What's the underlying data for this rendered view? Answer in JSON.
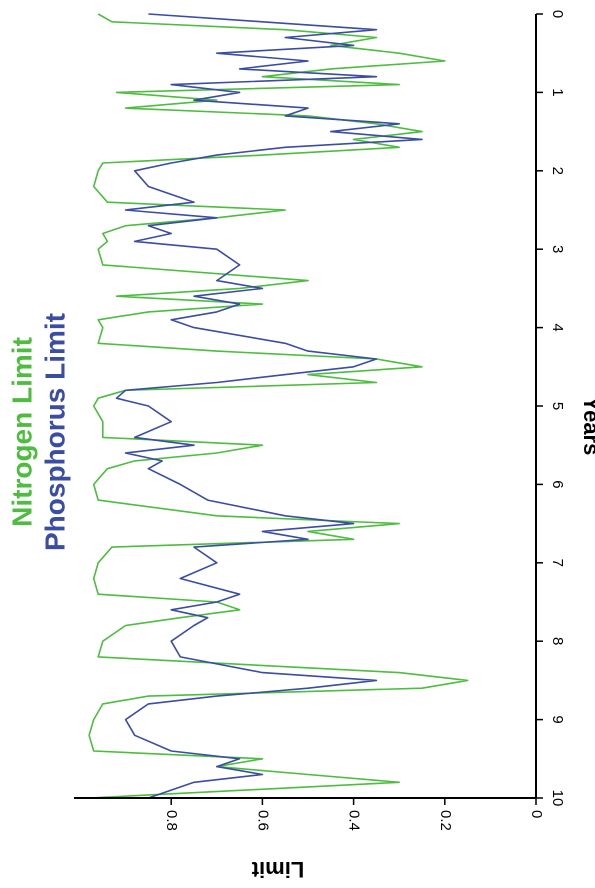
{
  "chart_data": {
    "type": "line",
    "orientation": "rotated-90-clockwise",
    "xlabel": "Years",
    "ylabel": "Limit",
    "xlim": [
      0,
      10
    ],
    "ylim": [
      0,
      1
    ],
    "x_ticks": [
      "0",
      "1",
      "2",
      "3",
      "4",
      "5",
      "6",
      "7",
      "8",
      "9",
      "10"
    ],
    "y_ticks": [
      "0",
      "0.2",
      "0.4",
      "0.6",
      "0.8"
    ],
    "grid": false,
    "legend_placement": "top-left",
    "series": [
      {
        "name": "Nitrogen Limit",
        "color": "#4dbd3f",
        "x": [
          0.0,
          0.1,
          0.2,
          0.3,
          0.4,
          0.5,
          0.6,
          0.7,
          0.8,
          0.9,
          1.0,
          1.1,
          1.2,
          1.3,
          1.4,
          1.5,
          1.6,
          1.7,
          1.8,
          1.9,
          2.0,
          2.2,
          2.4,
          2.5,
          2.6,
          2.7,
          2.8,
          2.9,
          3.0,
          3.2,
          3.4,
          3.5,
          3.6,
          3.7,
          3.8,
          3.9,
          4.0,
          4.2,
          4.3,
          4.4,
          4.5,
          4.6,
          4.7,
          4.8,
          4.9,
          5.0,
          5.2,
          5.4,
          5.5,
          5.6,
          5.7,
          5.8,
          6.0,
          6.2,
          6.4,
          6.5,
          6.6,
          6.7,
          6.8,
          7.0,
          7.2,
          7.4,
          7.5,
          7.6,
          7.7,
          7.8,
          8.0,
          8.2,
          8.4,
          8.5,
          8.6,
          8.7,
          8.8,
          9.0,
          9.2,
          9.4,
          9.5,
          9.6,
          9.7,
          9.8,
          10.0
        ],
        "y": [
          0.96,
          0.93,
          0.55,
          0.35,
          0.45,
          0.3,
          0.2,
          0.45,
          0.6,
          0.3,
          0.92,
          0.7,
          0.9,
          0.5,
          0.35,
          0.25,
          0.4,
          0.3,
          0.6,
          0.95,
          0.96,
          0.97,
          0.94,
          0.55,
          0.7,
          0.9,
          0.95,
          0.94,
          0.96,
          0.95,
          0.5,
          0.65,
          0.92,
          0.6,
          0.85,
          0.96,
          0.95,
          0.96,
          0.7,
          0.35,
          0.25,
          0.5,
          0.35,
          0.9,
          0.96,
          0.97,
          0.95,
          0.95,
          0.6,
          0.7,
          0.88,
          0.94,
          0.97,
          0.96,
          0.7,
          0.3,
          0.5,
          0.4,
          0.93,
          0.96,
          0.97,
          0.96,
          0.7,
          0.65,
          0.78,
          0.9,
          0.95,
          0.96,
          0.3,
          0.15,
          0.25,
          0.85,
          0.95,
          0.97,
          0.98,
          0.97,
          0.6,
          0.7,
          0.5,
          0.3,
          0.98
        ]
      },
      {
        "name": "Phosphorus Limit",
        "color": "#3a4ca4",
        "x": [
          0.0,
          0.1,
          0.2,
          0.3,
          0.4,
          0.5,
          0.6,
          0.7,
          0.8,
          0.9,
          1.0,
          1.1,
          1.2,
          1.3,
          1.4,
          1.5,
          1.6,
          1.7,
          1.8,
          1.9,
          2.0,
          2.2,
          2.4,
          2.5,
          2.6,
          2.7,
          2.8,
          2.9,
          3.0,
          3.2,
          3.4,
          3.5,
          3.6,
          3.7,
          3.8,
          3.9,
          4.0,
          4.2,
          4.3,
          4.4,
          4.5,
          4.6,
          4.7,
          4.8,
          4.9,
          5.0,
          5.2,
          5.4,
          5.5,
          5.6,
          5.7,
          5.8,
          6.0,
          6.2,
          6.4,
          6.5,
          6.6,
          6.7,
          6.8,
          7.0,
          7.2,
          7.4,
          7.5,
          7.6,
          7.7,
          7.8,
          8.0,
          8.2,
          8.4,
          8.5,
          8.6,
          8.7,
          8.8,
          9.0,
          9.2,
          9.4,
          9.5,
          9.6,
          9.7,
          9.8,
          10.0
        ],
        "y": [
          0.85,
          0.6,
          0.35,
          0.55,
          0.4,
          0.7,
          0.5,
          0.65,
          0.35,
          0.8,
          0.65,
          0.75,
          0.5,
          0.55,
          0.3,
          0.45,
          0.25,
          0.55,
          0.7,
          0.8,
          0.88,
          0.85,
          0.75,
          0.9,
          0.7,
          0.85,
          0.8,
          0.88,
          0.7,
          0.65,
          0.7,
          0.6,
          0.75,
          0.65,
          0.7,
          0.8,
          0.75,
          0.55,
          0.5,
          0.35,
          0.4,
          0.55,
          0.7,
          0.9,
          0.92,
          0.85,
          0.8,
          0.88,
          0.75,
          0.9,
          0.82,
          0.85,
          0.78,
          0.72,
          0.55,
          0.4,
          0.6,
          0.5,
          0.75,
          0.7,
          0.78,
          0.65,
          0.7,
          0.8,
          0.72,
          0.75,
          0.8,
          0.78,
          0.6,
          0.35,
          0.5,
          0.7,
          0.85,
          0.9,
          0.88,
          0.8,
          0.65,
          0.7,
          0.6,
          0.75,
          0.85
        ]
      }
    ]
  }
}
